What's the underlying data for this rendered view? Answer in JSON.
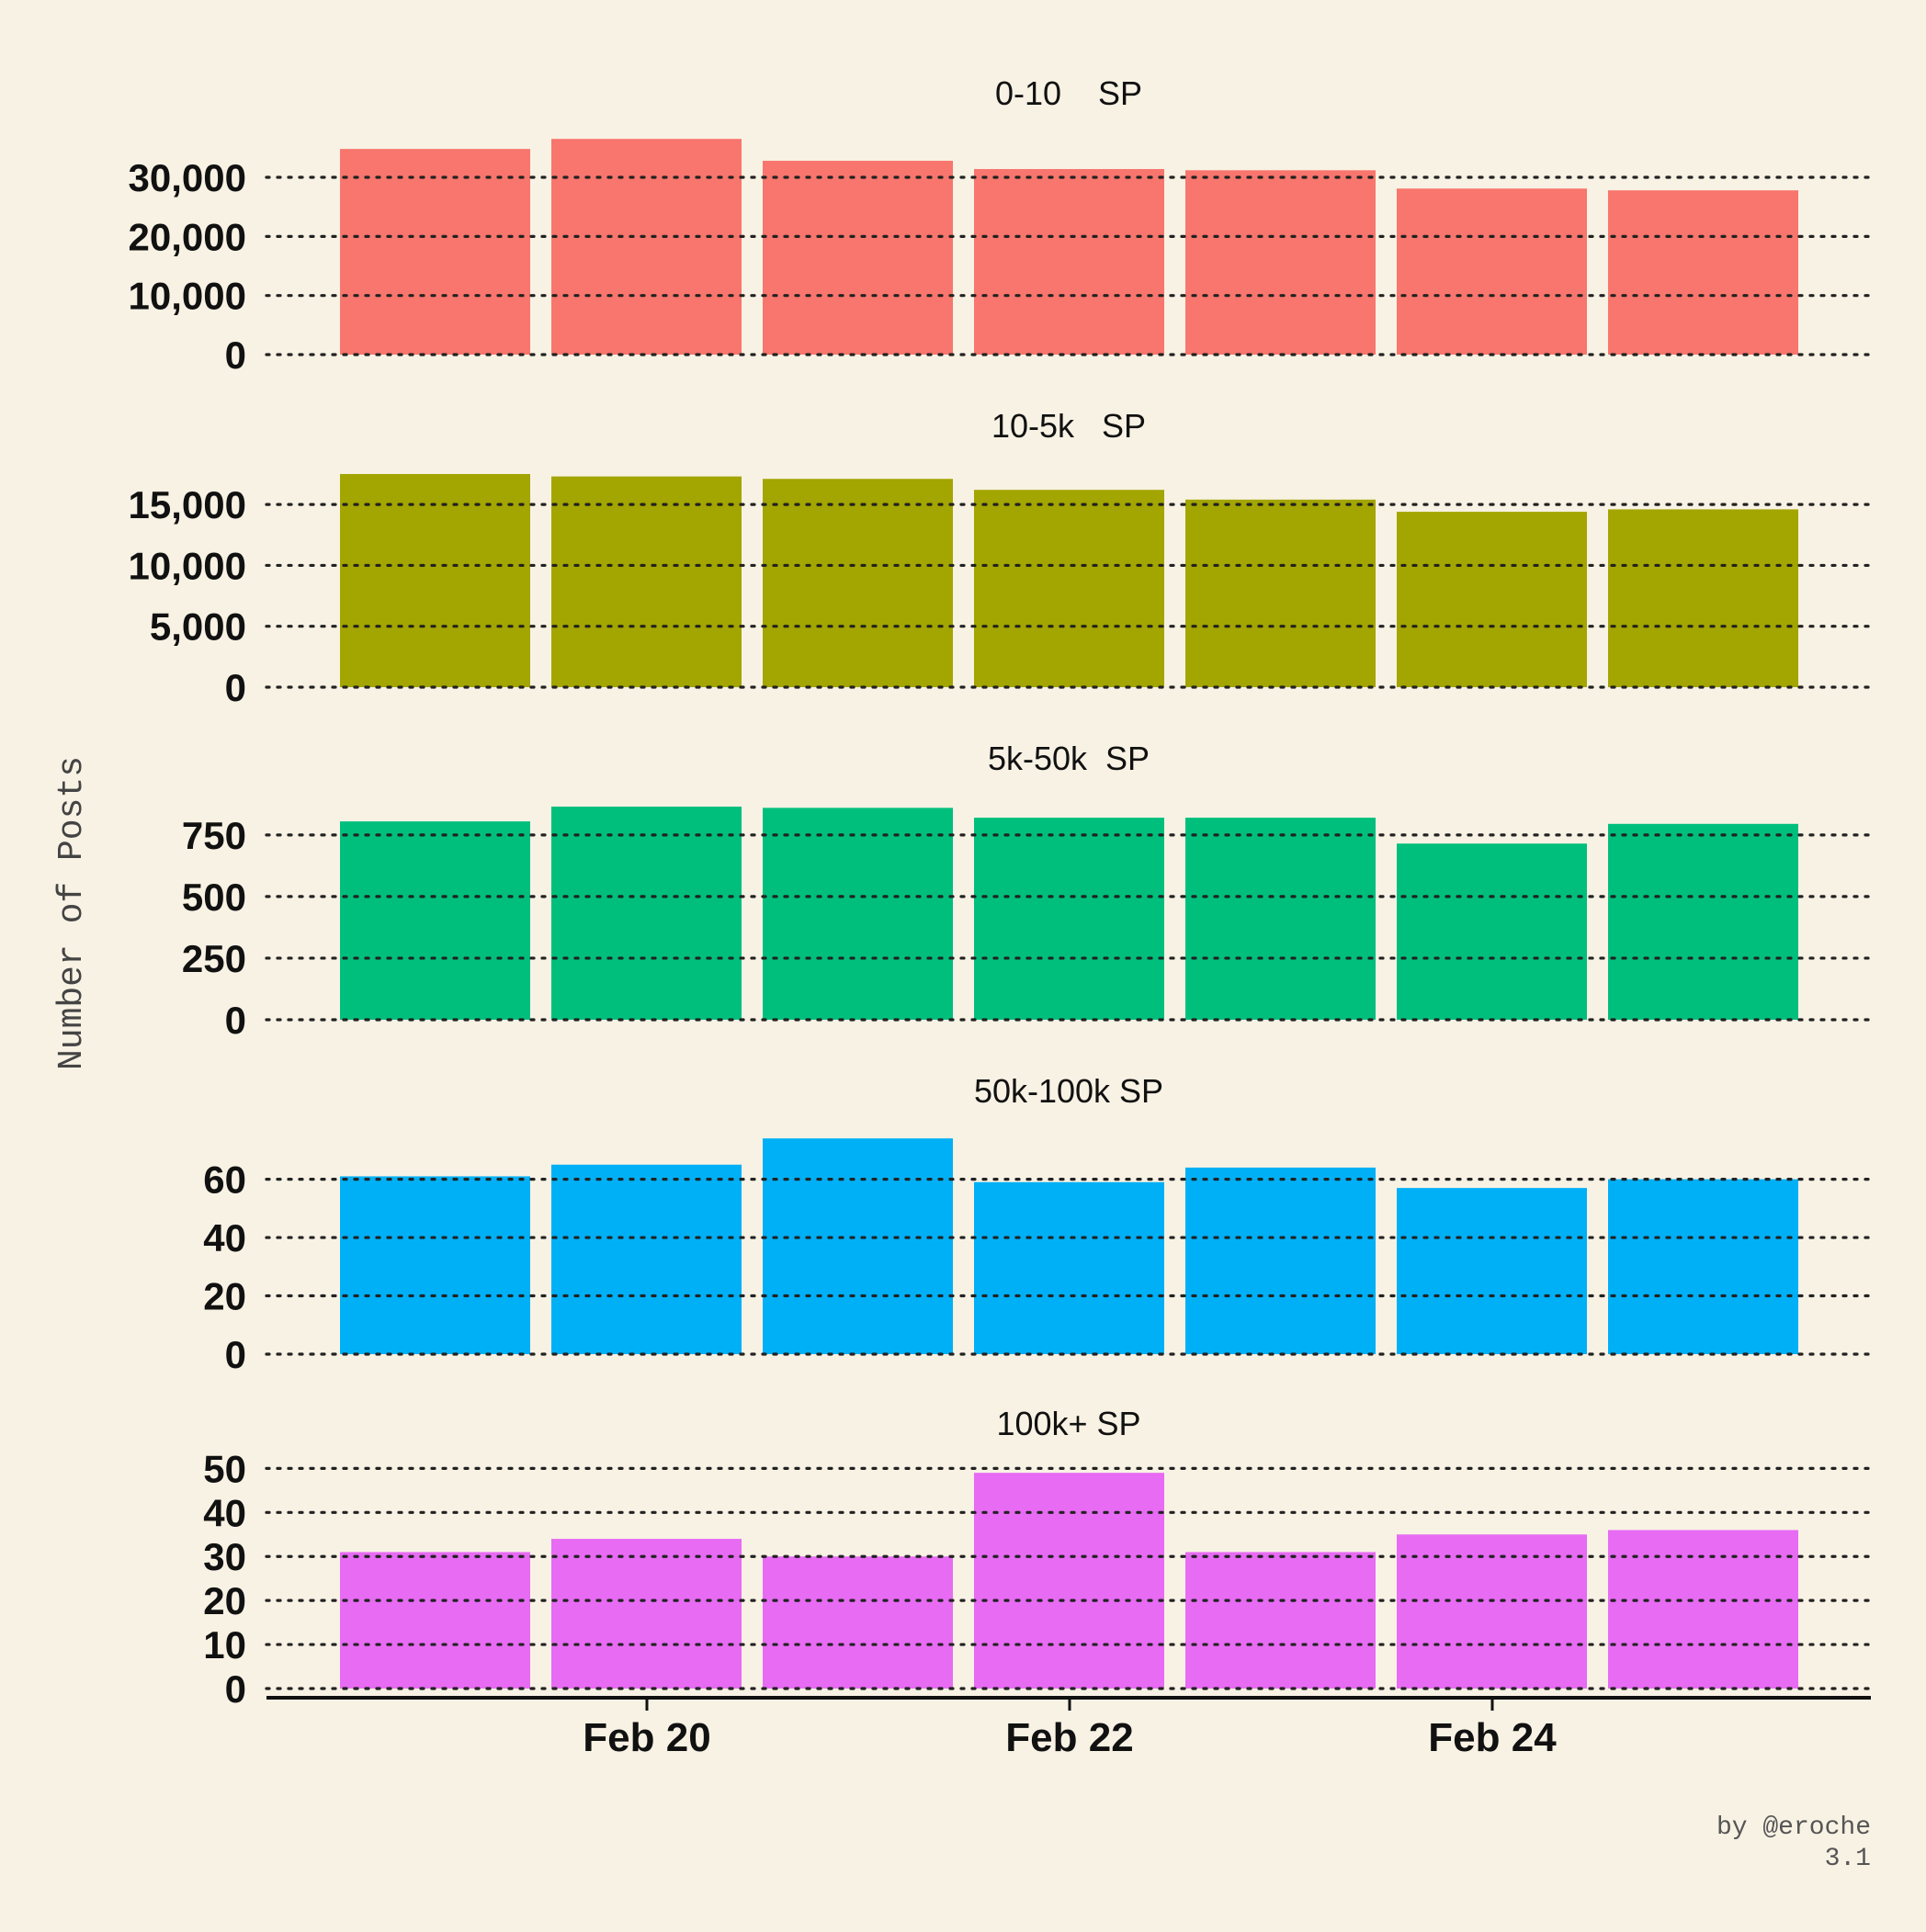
{
  "chart_data": {
    "type": "bar",
    "layout": "faceted",
    "ylabel": "Number of Posts",
    "x_ticks": [
      "Feb 20",
      "Feb 22",
      "Feb 24"
    ],
    "x_dates": [
      "2023-02-19",
      "2023-02-20",
      "2023-02-21",
      "2023-02-22",
      "2023-02-23",
      "2023-02-24",
      "2023-02-25"
    ],
    "grid": "dotted horizontal",
    "panels": [
      {
        "title": "0-10    SP",
        "color": "#f8766d",
        "ylim": [
          0,
          37000
        ],
        "yticks": [
          0,
          10000,
          20000,
          30000
        ],
        "ytick_labels": [
          "0",
          "10,000",
          "20,000",
          "30,000"
        ],
        "values": [
          34800,
          36500,
          32800,
          31400,
          31200,
          28100,
          27800
        ]
      },
      {
        "title": "10-5k   SP",
        "color": "#a3a500",
        "ylim": [
          0,
          17800
        ],
        "yticks": [
          0,
          5000,
          10000,
          15000
        ],
        "ytick_labels": [
          "0",
          "5,000",
          "10,000",
          "15,000"
        ],
        "values": [
          17500,
          17300,
          17100,
          16200,
          15400,
          14400,
          14600
        ]
      },
      {
        "title": "5k-50k  SP",
        "color": "#00bf7d",
        "ylim": [
          0,
          880
        ],
        "yticks": [
          0,
          250,
          500,
          750
        ],
        "ytick_labels": [
          "0",
          "250",
          "500",
          "750"
        ],
        "values": [
          805,
          865,
          860,
          820,
          820,
          715,
          795
        ]
      },
      {
        "title": "50k-100k SP",
        "color": "#00b0f6",
        "ylim": [
          0,
          75
        ],
        "yticks": [
          0,
          20,
          40,
          60
        ],
        "ytick_labels": [
          "0",
          "20",
          "40",
          "60"
        ],
        "values": [
          61,
          65,
          74,
          59,
          64,
          57,
          60
        ]
      },
      {
        "title": "100k+ SP",
        "color": "#e76bf3",
        "ylim": [
          0,
          50.5
        ],
        "yticks": [
          0,
          10,
          20,
          30,
          40,
          50
        ],
        "ytick_labels": [
          "0",
          "10",
          "20",
          "30",
          "40",
          "50"
        ],
        "values": [
          31,
          34,
          30,
          49,
          31,
          35,
          36
        ]
      }
    ]
  },
  "credit": {
    "line1": "by @eroche",
    "line2": "3.1"
  }
}
